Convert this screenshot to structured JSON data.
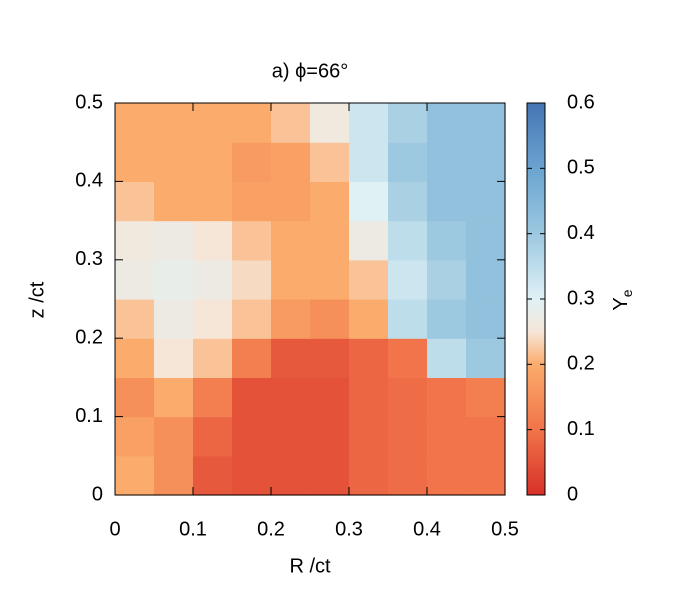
{
  "chart_data": {
    "type": "heatmap",
    "title": "a) ϕ=66°",
    "xlabel": "R /ct",
    "ylabel": "z /ct",
    "xlim": [
      0,
      0.5
    ],
    "ylim": [
      0,
      0.5
    ],
    "xticks": [
      0,
      0.1,
      0.2,
      0.3,
      0.4,
      0.5
    ],
    "yticks": [
      0,
      0.1,
      0.2,
      0.3,
      0.4,
      0.5
    ],
    "z": [
      [
        0.2,
        0.15,
        0.06,
        0.05,
        0.05,
        0.05,
        0.08,
        0.09,
        0.1,
        0.1
      ],
      [
        0.18,
        0.15,
        0.08,
        0.05,
        0.05,
        0.05,
        0.08,
        0.09,
        0.1,
        0.1
      ],
      [
        0.15,
        0.2,
        0.12,
        0.05,
        0.05,
        0.05,
        0.08,
        0.09,
        0.1,
        0.12
      ],
      [
        0.2,
        0.25,
        0.22,
        0.12,
        0.06,
        0.06,
        0.08,
        0.1,
        0.35,
        0.4
      ],
      [
        0.22,
        0.27,
        0.25,
        0.22,
        0.17,
        0.15,
        0.2,
        0.35,
        0.4,
        0.42
      ],
      [
        0.27,
        0.28,
        0.27,
        0.24,
        0.2,
        0.2,
        0.22,
        0.33,
        0.38,
        0.42
      ],
      [
        0.26,
        0.27,
        0.25,
        0.22,
        0.2,
        0.2,
        0.27,
        0.35,
        0.4,
        0.42
      ],
      [
        0.22,
        0.2,
        0.2,
        0.18,
        0.18,
        0.2,
        0.3,
        0.38,
        0.42,
        0.42
      ],
      [
        0.2,
        0.2,
        0.2,
        0.17,
        0.18,
        0.22,
        0.33,
        0.4,
        0.42,
        0.42
      ],
      [
        0.2,
        0.2,
        0.2,
        0.2,
        0.22,
        0.26,
        0.33,
        0.38,
        0.42,
        0.42
      ]
    ],
    "zlim": [
      0,
      0.6
    ],
    "zticks": [
      0,
      0.1,
      0.2,
      0.3,
      0.4,
      0.5,
      0.6
    ],
    "colorbar_label": "Y",
    "colorbar_label_sub": "e",
    "colorscale": [
      {
        "value": 0,
        "color": "#d73027"
      },
      {
        "value": 0.1,
        "color": "#f1744a"
      },
      {
        "value": 0.2,
        "color": "#fbac6c"
      },
      {
        "value": 0.25,
        "color": "#f5e6d8"
      },
      {
        "value": 0.3,
        "color": "#e0f1f6"
      },
      {
        "value": 0.4,
        "color": "#9cc8e0"
      },
      {
        "value": 0.5,
        "color": "#6aa4d0"
      },
      {
        "value": 0.6,
        "color": "#4575b4"
      }
    ]
  }
}
